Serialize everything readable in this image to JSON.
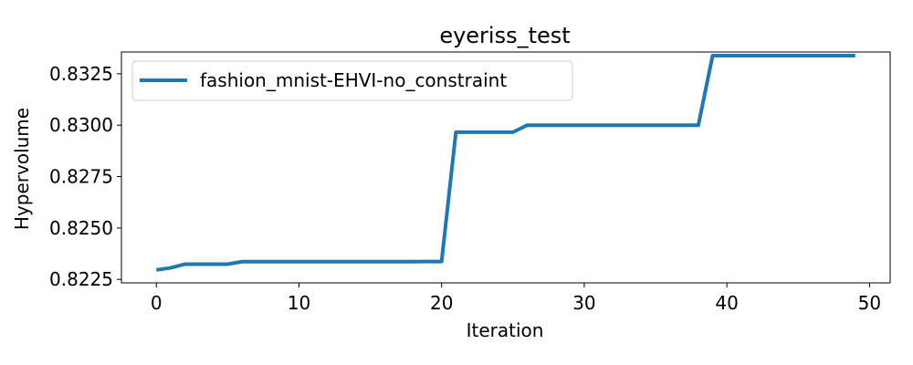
{
  "chart_data": {
    "type": "line",
    "title": "eyeriss_test",
    "xlabel": "Iteration",
    "ylabel": "Hypervolume",
    "xlim": [
      -2.45,
      51.45
    ],
    "ylim": [
      0.82233,
      0.83356
    ],
    "xticks": [
      0,
      10,
      20,
      30,
      40,
      50
    ],
    "xtick_labels": [
      "0",
      "10",
      "20",
      "30",
      "40",
      "50"
    ],
    "yticks": [
      0.8225,
      0.825,
      0.8275,
      0.83,
      0.8325
    ],
    "ytick_labels": [
      "0.8225",
      "0.8250",
      "0.8275",
      "0.8300",
      "0.8325"
    ],
    "grid": false,
    "legend_position": "upper-left",
    "series": [
      {
        "name": "fashion_mnist-EHVI-no_constraint",
        "color": "#1f77b4",
        "x": [
          0,
          1,
          2,
          3,
          4,
          5,
          6,
          7,
          8,
          9,
          10,
          11,
          12,
          13,
          14,
          15,
          16,
          17,
          18,
          19,
          20,
          21,
          22,
          23,
          24,
          25,
          26,
          27,
          28,
          29,
          30,
          31,
          32,
          33,
          34,
          35,
          36,
          37,
          38,
          39,
          40,
          41,
          42,
          43,
          44,
          45,
          46,
          47,
          48,
          49
        ],
        "y": [
          0.82296,
          0.82306,
          0.82324,
          0.82324,
          0.82324,
          0.82324,
          0.82336,
          0.82336,
          0.82336,
          0.82336,
          0.82336,
          0.82336,
          0.82336,
          0.82336,
          0.82336,
          0.82336,
          0.82336,
          0.82336,
          0.82336,
          0.82337,
          0.82337,
          0.82966,
          0.82966,
          0.82966,
          0.82966,
          0.82966,
          0.83,
          0.83,
          0.83,
          0.83,
          0.83,
          0.83,
          0.83,
          0.83,
          0.83,
          0.83,
          0.83,
          0.83,
          0.83,
          0.83338,
          0.83338,
          0.83338,
          0.83338,
          0.83338,
          0.83338,
          0.83338,
          0.83338,
          0.83338,
          0.83338,
          0.83338
        ]
      }
    ]
  }
}
